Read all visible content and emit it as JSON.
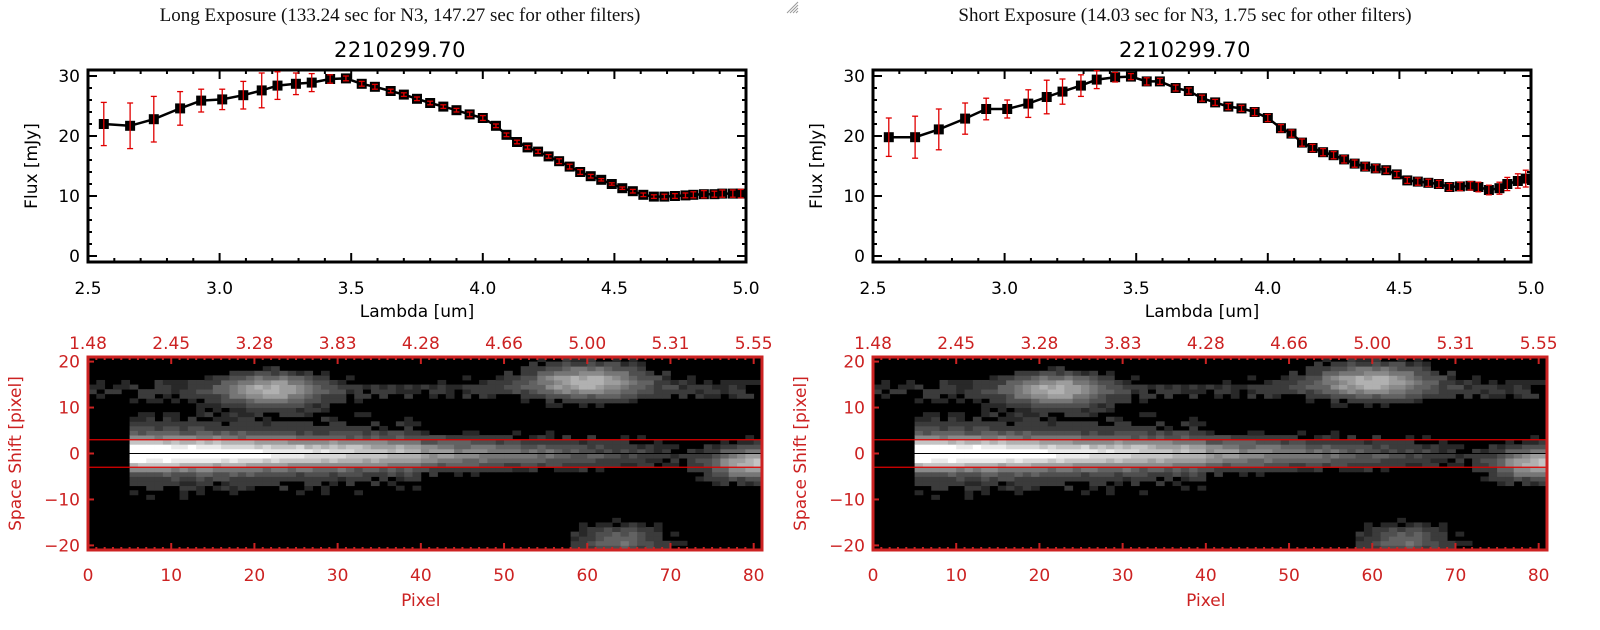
{
  "colors": {
    "axis_black": "#000000",
    "error_red": "#e00000",
    "image_axis_red": "#cc2222",
    "aperture_red": "#e00000",
    "center_line": "#000000"
  },
  "panels": [
    {
      "id": "long",
      "title": "Long Exposure (133.24 sec for N3, 147.27 sec for other filters)",
      "object_id": "2210299.70",
      "chart_data": [
        {
          "type": "line",
          "title": "2210299.70",
          "xlabel": "Lambda [um]",
          "ylabel": "Flux [mJy]",
          "xlim": [
            2.5,
            5.0
          ],
          "ylim": [
            -1,
            31
          ],
          "xticks": [
            "2.5",
            "3.0",
            "3.5",
            "4.0",
            "4.5",
            "5.0"
          ],
          "xtick_values": [
            2.5,
            3.0,
            3.5,
            4.0,
            4.5,
            5.0
          ],
          "yticks": [
            "0",
            "10",
            "20",
            "30"
          ],
          "ytick_values": [
            0,
            10,
            20,
            30
          ],
          "grid": false,
          "series": [
            {
              "name": "flux",
              "x": [
                2.56,
                2.66,
                2.75,
                2.85,
                2.93,
                3.01,
                3.09,
                3.16,
                3.22,
                3.29,
                3.35,
                3.42,
                3.48,
                3.54,
                3.59,
                3.65,
                3.7,
                3.75,
                3.8,
                3.85,
                3.9,
                3.95,
                4.0,
                4.05,
                4.09,
                4.13,
                4.17,
                4.21,
                4.25,
                4.29,
                4.33,
                4.37,
                4.41,
                4.45,
                4.49,
                4.53,
                4.57,
                4.61,
                4.65,
                4.69,
                4.73,
                4.77,
                4.8,
                4.84,
                4.88,
                4.91,
                4.95,
                4.98
              ],
              "y": [
                22.0,
                21.7,
                22.8,
                24.6,
                25.9,
                26.1,
                26.8,
                27.6,
                28.4,
                28.7,
                28.9,
                29.5,
                29.6,
                28.7,
                28.2,
                27.5,
                26.9,
                26.2,
                25.5,
                24.9,
                24.3,
                23.6,
                23.0,
                21.7,
                20.2,
                19.0,
                18.1,
                17.4,
                16.6,
                15.8,
                14.9,
                14.0,
                13.3,
                12.7,
                12.0,
                11.3,
                10.8,
                10.2,
                9.9,
                9.9,
                10.0,
                10.1,
                10.2,
                10.3,
                10.3,
                10.4,
                10.4,
                10.4
              ],
              "err": [
                3.6,
                3.8,
                3.8,
                2.8,
                1.9,
                1.7,
                2.3,
                2.9,
                2.3,
                1.8,
                1.5,
                0.7,
                0.4,
                0.4,
                0.4,
                0.3,
                0.3,
                0.3,
                0.3,
                0.3,
                0.3,
                0.4,
                0.4,
                0.3,
                0.3,
                0.3,
                0.3,
                0.3,
                0.3,
                0.4,
                0.4,
                0.4,
                0.3,
                0.2,
                0.2,
                0.2,
                0.3,
                0.3,
                0.3,
                0.4,
                0.4,
                0.4,
                0.5,
                0.6,
                0.5,
                0.6,
                0.6,
                0.7
              ]
            }
          ]
        },
        {
          "type": "heatmap",
          "xlabel": "Pixel",
          "ylabel": "Space Shift [pixel]",
          "xlim": [
            0,
            81
          ],
          "ylim": [
            -21,
            21
          ],
          "xticks": [
            "0",
            "10",
            "20",
            "30",
            "40",
            "50",
            "60",
            "70",
            "80"
          ],
          "xtick_values": [
            0,
            10,
            20,
            30,
            40,
            50,
            60,
            70,
            80
          ],
          "yticks": [
            "-20",
            "-10",
            "0",
            "10",
            "20"
          ],
          "ytick_values": [
            -20,
            -10,
            0,
            10,
            20
          ],
          "top_xticks": [
            "1.48",
            "2.45",
            "3.28",
            "3.83",
            "4.28",
            "4.66",
            "5.00",
            "5.31",
            "5.55"
          ],
          "aperture_lines": [
            3,
            -3
          ],
          "center_line": 0,
          "sources": [
            {
              "label": "main trace",
              "x_start": 5,
              "x_peak": 9,
              "x_end": 66,
              "y": 0,
              "peak": 0.95
            },
            {
              "label": "upper blob",
              "x": 22,
              "y": 14,
              "peak": 0.55
            },
            {
              "label": "upper-right blob",
              "x": 60,
              "y": 16,
              "peak": 0.6
            },
            {
              "label": "right-edge source",
              "x": 80,
              "y": -2,
              "peak": 0.7
            },
            {
              "label": "lower blob",
              "x": 64,
              "y": -19,
              "peak": 0.35
            }
          ]
        }
      ]
    },
    {
      "id": "short",
      "title": "Short Exposure (14.03 sec for N3, 1.75 sec for other filters)",
      "object_id": "2210299.70",
      "chart_data": [
        {
          "type": "line",
          "title": "2210299.70",
          "xlabel": "Lambda [um]",
          "ylabel": "Flux [mJy]",
          "xlim": [
            2.5,
            5.0
          ],
          "ylim": [
            -1,
            31
          ],
          "xticks": [
            "2.5",
            "3.0",
            "3.5",
            "4.0",
            "4.5",
            "5.0"
          ],
          "xtick_values": [
            2.5,
            3.0,
            3.5,
            4.0,
            4.5,
            5.0
          ],
          "yticks": [
            "0",
            "10",
            "20",
            "30"
          ],
          "ytick_values": [
            0,
            10,
            20,
            30
          ],
          "grid": false,
          "series": [
            {
              "name": "flux",
              "x": [
                2.56,
                2.66,
                2.75,
                2.85,
                2.93,
                3.01,
                3.09,
                3.16,
                3.22,
                3.29,
                3.35,
                3.42,
                3.48,
                3.54,
                3.59,
                3.65,
                3.7,
                3.75,
                3.8,
                3.85,
                3.9,
                3.95,
                4.0,
                4.05,
                4.09,
                4.13,
                4.17,
                4.21,
                4.25,
                4.29,
                4.33,
                4.37,
                4.41,
                4.45,
                4.49,
                4.53,
                4.57,
                4.61,
                4.65,
                4.69,
                4.73,
                4.77,
                4.8,
                4.84,
                4.88,
                4.91,
                4.95,
                4.98
              ],
              "y": [
                19.8,
                19.8,
                21.1,
                22.9,
                24.5,
                24.5,
                25.4,
                26.5,
                27.4,
                28.4,
                29.4,
                29.8,
                29.9,
                29.1,
                29.1,
                28.0,
                27.5,
                26.3,
                25.6,
                24.9,
                24.6,
                24.0,
                23.0,
                21.3,
                20.4,
                18.9,
                18.0,
                17.3,
                16.8,
                16.1,
                15.4,
                14.9,
                14.6,
                14.3,
                13.6,
                12.6,
                12.4,
                12.2,
                12.0,
                11.5,
                11.6,
                11.7,
                11.5,
                11.0,
                11.3,
                12.0,
                12.5,
                12.9
              ],
              "err": [
                3.2,
                3.5,
                3.4,
                2.6,
                1.8,
                1.5,
                2.3,
                2.8,
                2.1,
                1.8,
                1.5,
                0.8,
                0.5,
                0.6,
                0.5,
                0.5,
                0.5,
                0.5,
                0.5,
                0.5,
                0.5,
                0.6,
                0.6,
                0.6,
                0.6,
                0.6,
                0.6,
                0.6,
                0.6,
                0.6,
                0.6,
                0.6,
                0.6,
                0.5,
                0.5,
                0.5,
                0.6,
                0.6,
                0.6,
                0.6,
                0.7,
                0.7,
                0.8,
                0.8,
                1.0,
                1.1,
                1.2,
                1.4
              ]
            }
          ]
        },
        {
          "type": "heatmap",
          "xlabel": "Pixel",
          "ylabel": "Space Shift [pixel]",
          "xlim": [
            0,
            81
          ],
          "ylim": [
            -21,
            21
          ],
          "xticks": [
            "0",
            "10",
            "20",
            "30",
            "40",
            "50",
            "60",
            "70",
            "80"
          ],
          "xtick_values": [
            0,
            10,
            20,
            30,
            40,
            50,
            60,
            70,
            80
          ],
          "yticks": [
            "-20",
            "-10",
            "0",
            "10",
            "20"
          ],
          "ytick_values": [
            -20,
            -10,
            0,
            10,
            20
          ],
          "top_xticks": [
            "1.48",
            "2.45",
            "3.28",
            "3.83",
            "4.28",
            "4.66",
            "5.00",
            "5.31",
            "5.55"
          ],
          "aperture_lines": [
            3,
            -3
          ],
          "center_line": 0,
          "sources": [
            {
              "label": "main trace",
              "x_start": 5,
              "x_peak": 9,
              "x_end": 66,
              "y": 0,
              "peak": 0.95
            },
            {
              "label": "upper blob",
              "x": 22,
              "y": 14,
              "peak": 0.55
            },
            {
              "label": "upper-right blob",
              "x": 60,
              "y": 16,
              "peak": 0.6
            },
            {
              "label": "right-edge source",
              "x": 80,
              "y": -2,
              "peak": 0.7
            },
            {
              "label": "lower blob",
              "x": 64,
              "y": -19,
              "peak": 0.35
            }
          ]
        }
      ]
    }
  ]
}
